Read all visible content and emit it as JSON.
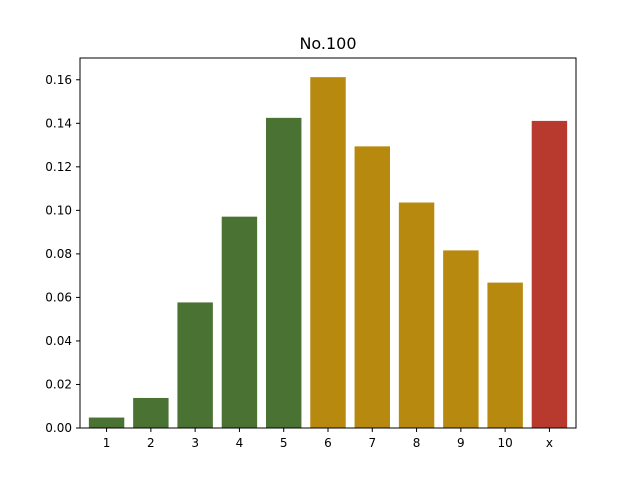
{
  "chart_data": {
    "type": "bar",
    "title": "No.100",
    "xlabel": "",
    "ylabel": "",
    "categories": [
      "1",
      "2",
      "3",
      "4",
      "5",
      "6",
      "7",
      "8",
      "9",
      "10",
      "x"
    ],
    "values": [
      0.0048,
      0.0138,
      0.0577,
      0.0971,
      0.1425,
      0.1612,
      0.1294,
      0.1036,
      0.0816,
      0.0668,
      0.1411
    ],
    "bar_colors": [
      "#4a7232",
      "#4a7232",
      "#4a7232",
      "#4a7232",
      "#4a7232",
      "#b8890f",
      "#b8890f",
      "#b8890f",
      "#b8890f",
      "#b8890f",
      "#b83a2e"
    ],
    "ylim": [
      0,
      0.17
    ],
    "yticks": [
      0.0,
      0.02,
      0.04,
      0.06,
      0.08,
      0.1,
      0.12,
      0.14,
      0.16
    ],
    "ytick_labels": [
      "0.00",
      "0.02",
      "0.04",
      "0.06",
      "0.08",
      "0.10",
      "0.12",
      "0.14",
      "0.16"
    ],
    "grid": false,
    "legend": "none"
  }
}
